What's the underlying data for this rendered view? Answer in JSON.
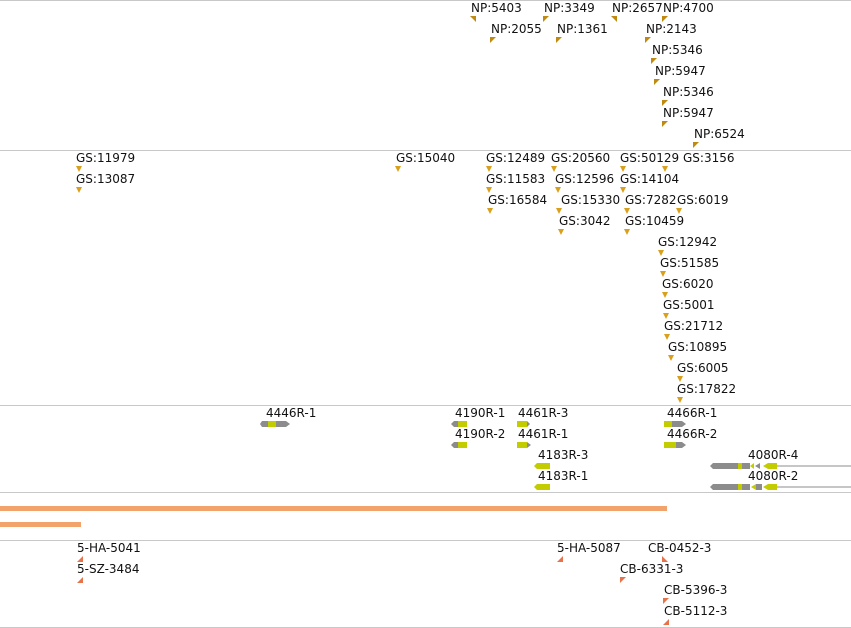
{
  "tracks": {
    "np": [
      "NP:5403",
      "NP:3349",
      "NP:2657",
      "NP:4700",
      "NP:2055",
      "NP:1361",
      "NP:2143",
      "NP:5346",
      "NP:5947",
      "NP:5346",
      "NP:5947",
      "NP:6524"
    ],
    "gs": [
      "GS:11979",
      "GS:15040",
      "GS:12489",
      "GS:20560",
      "GS:50129",
      "GS:3156",
      "GS:13087",
      "GS:11583",
      "GS:12596",
      "GS:14104",
      "GS:16584",
      "GS:15330",
      "GS:7282",
      "GS:6019",
      "GS:3042",
      "GS:10459",
      "GS:12942",
      "GS:51585",
      "GS:6020",
      "GS:5001",
      "GS:21712",
      "GS:10895",
      "GS:6005",
      "GS:17822"
    ],
    "genes": [
      "4446R-1",
      "4190R-1",
      "4461R-3",
      "4466R-1",
      "4190R-2",
      "4461R-1",
      "4466R-2",
      "4183R-3",
      "4080R-4",
      "4183R-1",
      "4080R-2"
    ],
    "clones": [
      "5-HA-5041",
      "5-HA-5087",
      "CB-0452-3",
      "5-SZ-3484",
      "CB-6331-3",
      "CB-5396-3",
      "CB-5112-3"
    ]
  },
  "colors": {
    "np_marker": "#c08a10",
    "gs_marker": "#d9a01c",
    "gene_exon": "#c3cc00",
    "gene_intron": "#8c8c8c",
    "coverage_bar": "#f2a36b",
    "clone_marker": "#e8734a"
  }
}
